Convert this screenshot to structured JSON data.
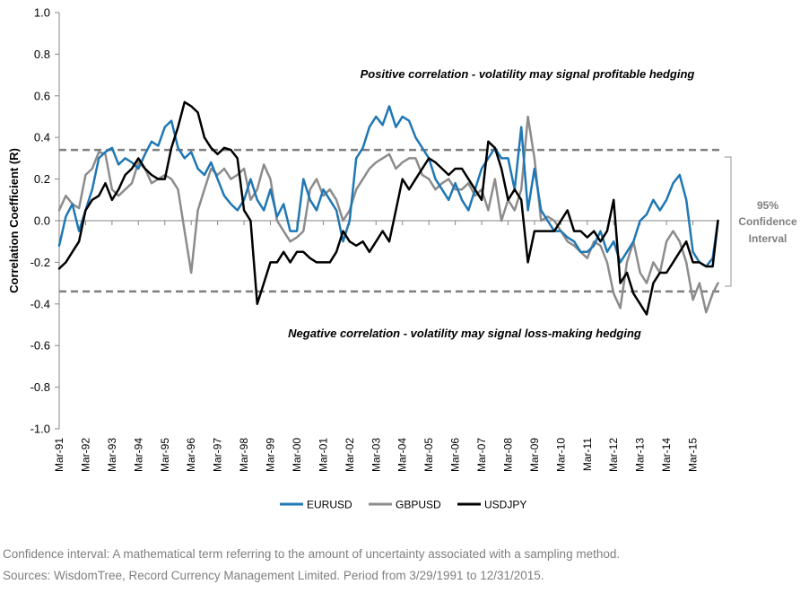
{
  "chart_data": {
    "type": "line",
    "xlabel": "",
    "ylabel": "Correlation Coefficient (R)",
    "ylim": [
      -1.0,
      1.0
    ],
    "yticks": [
      "1.0",
      "0.8",
      "0.6",
      "0.4",
      "0.2",
      "0.0",
      "-0.2",
      "-0.4",
      "-0.6",
      "-0.8",
      "-1.0"
    ],
    "ytick_values": [
      1.0,
      0.8,
      0.6,
      0.4,
      0.2,
      0.0,
      -0.2,
      -0.4,
      -0.6,
      -0.8,
      -1.0
    ],
    "xlim": [
      1991.0,
      2016.0
    ],
    "xticks": [
      "Mar-91",
      "Mar-92",
      "Mar-93",
      "Mar-94",
      "Mar-95",
      "Mar-96",
      "Mar-97",
      "Mar-98",
      "Mar-99",
      "Mar-00",
      "Mar-01",
      "Mar-02",
      "Mar-03",
      "Mar-04",
      "Mar-05",
      "Mar-06",
      "Mar-07",
      "Mar-08",
      "Mar-09",
      "Mar-10",
      "Mar-11",
      "Mar-12",
      "Mar-13",
      "Mar-14",
      "Mar-15"
    ],
    "bands": {
      "upper": 0.34,
      "lower": -0.34
    },
    "annotations": {
      "positive": "Positive correlation - volatility may signal profitable hedging",
      "negative": "Negative correlation - volatility may signal loss-making hedging",
      "ci_pct": "95%",
      "ci_line1": "Confidence",
      "ci_line2": "Interval"
    },
    "series": [
      {
        "name": "EURUSD",
        "color": "#1f77b4",
        "x": [
          1991.0,
          1991.25,
          1991.5,
          1991.75,
          1992.0,
          1992.25,
          1992.5,
          1992.75,
          1993.0,
          1993.25,
          1993.5,
          1993.75,
          1994.0,
          1994.25,
          1994.5,
          1994.75,
          1995.0,
          1995.25,
          1995.5,
          1995.75,
          1996.0,
          1996.25,
          1996.5,
          1996.75,
          1997.0,
          1997.25,
          1997.5,
          1997.75,
          1998.0,
          1998.25,
          1998.5,
          1998.75,
          1999.0,
          1999.25,
          1999.5,
          1999.75,
          2000.0,
          2000.25,
          2000.5,
          2000.75,
          2001.0,
          2001.25,
          2001.5,
          2001.75,
          2002.0,
          2002.25,
          2002.5,
          2002.75,
          2003.0,
          2003.25,
          2003.5,
          2003.75,
          2004.0,
          2004.25,
          2004.5,
          2004.75,
          2005.0,
          2005.25,
          2005.5,
          2005.75,
          2006.0,
          2006.25,
          2006.5,
          2006.75,
          2007.0,
          2007.25,
          2007.5,
          2007.75,
          2008.0,
          2008.25,
          2008.5,
          2008.75,
          2009.0,
          2009.25,
          2009.5,
          2009.75,
          2010.0,
          2010.25,
          2010.5,
          2010.75,
          2011.0,
          2011.25,
          2011.5,
          2011.75,
          2012.0,
          2012.25,
          2012.5,
          2012.75,
          2013.0,
          2013.25,
          2013.5,
          2013.75,
          2014.0,
          2014.25,
          2014.5,
          2014.75,
          2015.0,
          2015.25,
          2015.5,
          2015.75,
          2015.95
        ],
        "values": [
          -0.12,
          0.02,
          0.08,
          -0.05,
          0.05,
          0.15,
          0.3,
          0.33,
          0.35,
          0.27,
          0.3,
          0.28,
          0.25,
          0.32,
          0.38,
          0.36,
          0.45,
          0.48,
          0.35,
          0.3,
          0.33,
          0.25,
          0.22,
          0.28,
          0.2,
          0.12,
          0.08,
          0.05,
          0.1,
          0.2,
          0.1,
          0.05,
          0.15,
          0.02,
          0.08,
          -0.05,
          -0.05,
          0.2,
          0.1,
          0.05,
          0.15,
          0.1,
          0.05,
          -0.1,
          0.0,
          0.3,
          0.35,
          0.45,
          0.5,
          0.46,
          0.55,
          0.45,
          0.5,
          0.48,
          0.4,
          0.35,
          0.3,
          0.2,
          0.15,
          0.1,
          0.18,
          0.1,
          0.05,
          0.15,
          0.25,
          0.3,
          0.35,
          0.3,
          0.3,
          0.15,
          0.45,
          0.05,
          0.25,
          0.05,
          0.0,
          -0.05,
          -0.05,
          -0.08,
          -0.1,
          -0.15,
          -0.15,
          -0.12,
          -0.05,
          -0.15,
          -0.1,
          -0.2,
          -0.15,
          -0.1,
          0.0,
          0.03,
          0.1,
          0.05,
          0.1,
          0.18,
          0.22,
          0.1,
          -0.15,
          -0.2,
          -0.22,
          -0.18,
          0.0
        ]
      },
      {
        "name": "GBPUSD",
        "color": "#8c8c8c",
        "x": [
          1991.0,
          1991.25,
          1991.5,
          1991.75,
          1992.0,
          1992.25,
          1992.5,
          1992.75,
          1993.0,
          1993.25,
          1993.5,
          1993.75,
          1994.0,
          1994.25,
          1994.5,
          1994.75,
          1995.0,
          1995.25,
          1995.5,
          1995.75,
          1996.0,
          1996.25,
          1996.5,
          1996.75,
          1997.0,
          1997.25,
          1997.5,
          1997.75,
          1998.0,
          1998.25,
          1998.5,
          1998.75,
          1999.0,
          1999.25,
          1999.5,
          1999.75,
          2000.0,
          2000.25,
          2000.5,
          2000.75,
          2001.0,
          2001.25,
          2001.5,
          2001.75,
          2002.0,
          2002.25,
          2002.5,
          2002.75,
          2003.0,
          2003.25,
          2003.5,
          2003.75,
          2004.0,
          2004.25,
          2004.5,
          2004.75,
          2005.0,
          2005.25,
          2005.5,
          2005.75,
          2006.0,
          2006.25,
          2006.5,
          2006.75,
          2007.0,
          2007.25,
          2007.5,
          2007.75,
          2008.0,
          2008.25,
          2008.5,
          2008.75,
          2009.0,
          2009.25,
          2009.5,
          2009.75,
          2010.0,
          2010.25,
          2010.5,
          2010.75,
          2011.0,
          2011.25,
          2011.5,
          2011.75,
          2012.0,
          2012.25,
          2012.5,
          2012.75,
          2013.0,
          2013.25,
          2013.5,
          2013.75,
          2014.0,
          2014.25,
          2014.5,
          2014.75,
          2015.0,
          2015.25,
          2015.5,
          2015.75,
          2015.95
        ],
        "values": [
          0.05,
          0.12,
          0.08,
          0.06,
          0.22,
          0.25,
          0.33,
          0.32,
          0.15,
          0.12,
          0.15,
          0.18,
          0.28,
          0.25,
          0.18,
          0.2,
          0.22,
          0.2,
          0.15,
          -0.05,
          -0.25,
          0.05,
          0.15,
          0.25,
          0.22,
          0.25,
          0.2,
          0.22,
          0.25,
          0.1,
          0.15,
          0.27,
          0.2,
          0.0,
          -0.05,
          -0.1,
          -0.08,
          -0.05,
          0.15,
          0.2,
          0.12,
          0.15,
          0.1,
          0.0,
          0.05,
          0.15,
          0.2,
          0.25,
          0.28,
          0.3,
          0.32,
          0.25,
          0.28,
          0.3,
          0.3,
          0.22,
          0.2,
          0.15,
          0.18,
          0.2,
          0.15,
          0.15,
          0.18,
          0.12,
          0.15,
          0.05,
          0.2,
          0.0,
          0.1,
          0.05,
          0.15,
          0.5,
          0.3,
          0.0,
          0.02,
          0.0,
          -0.05,
          -0.1,
          -0.12,
          -0.15,
          -0.18,
          -0.1,
          -0.12,
          -0.2,
          -0.35,
          -0.42,
          -0.2,
          -0.1,
          -0.25,
          -0.3,
          -0.2,
          -0.25,
          -0.1,
          -0.05,
          -0.1,
          -0.2,
          -0.38,
          -0.3,
          -0.44,
          -0.35,
          -0.3
        ]
      },
      {
        "name": "USDJPY",
        "color": "#000000",
        "x": [
          1991.0,
          1991.25,
          1991.5,
          1991.75,
          1992.0,
          1992.25,
          1992.5,
          1992.75,
          1993.0,
          1993.25,
          1993.5,
          1993.75,
          1994.0,
          1994.25,
          1994.5,
          1994.75,
          1995.0,
          1995.25,
          1995.5,
          1995.75,
          1996.0,
          1996.25,
          1996.5,
          1996.75,
          1997.0,
          1997.25,
          1997.5,
          1997.75,
          1998.0,
          1998.25,
          1998.5,
          1998.75,
          1999.0,
          1999.25,
          1999.5,
          1999.75,
          2000.0,
          2000.25,
          2000.5,
          2000.75,
          2001.0,
          2001.25,
          2001.5,
          2001.75,
          2002.0,
          2002.25,
          2002.5,
          2002.75,
          2003.0,
          2003.25,
          2003.5,
          2003.75,
          2004.0,
          2004.25,
          2004.5,
          2004.75,
          2005.0,
          2005.25,
          2005.5,
          2005.75,
          2006.0,
          2006.25,
          2006.5,
          2006.75,
          2007.0,
          2007.25,
          2007.5,
          2007.75,
          2008.0,
          2008.25,
          2008.5,
          2008.75,
          2009.0,
          2009.25,
          2009.5,
          2009.75,
          2010.0,
          2010.25,
          2010.5,
          2010.75,
          2011.0,
          2011.25,
          2011.5,
          2011.75,
          2012.0,
          2012.25,
          2012.5,
          2012.75,
          2013.0,
          2013.25,
          2013.5,
          2013.75,
          2014.0,
          2014.25,
          2014.5,
          2014.75,
          2015.0,
          2015.25,
          2015.5,
          2015.75,
          2015.95
        ],
        "values": [
          -0.23,
          -0.2,
          -0.15,
          -0.1,
          0.05,
          0.1,
          0.12,
          0.18,
          0.1,
          0.15,
          0.22,
          0.25,
          0.3,
          0.25,
          0.22,
          0.2,
          0.2,
          0.35,
          0.45,
          0.57,
          0.55,
          0.52,
          0.4,
          0.35,
          0.32,
          0.35,
          0.34,
          0.3,
          0.05,
          0.0,
          -0.4,
          -0.3,
          -0.2,
          -0.2,
          -0.15,
          -0.2,
          -0.15,
          -0.15,
          -0.18,
          -0.2,
          -0.2,
          -0.2,
          -0.15,
          -0.05,
          -0.1,
          -0.12,
          -0.1,
          -0.15,
          -0.1,
          -0.05,
          -0.1,
          0.05,
          0.2,
          0.15,
          0.2,
          0.25,
          0.3,
          0.28,
          0.25,
          0.22,
          0.25,
          0.25,
          0.2,
          0.15,
          0.1,
          0.38,
          0.35,
          0.25,
          0.1,
          0.15,
          0.1,
          -0.2,
          -0.05,
          -0.05,
          -0.05,
          -0.05,
          0.0,
          0.05,
          -0.05,
          -0.05,
          -0.08,
          -0.05,
          -0.1,
          -0.05,
          0.1,
          -0.3,
          -0.25,
          -0.35,
          -0.4,
          -0.45,
          -0.3,
          -0.25,
          -0.25,
          -0.2,
          -0.15,
          -0.1,
          -0.2,
          -0.2,
          -0.22,
          -0.22,
          0.0
        ]
      }
    ]
  },
  "footer": {
    "line1": "Confidence interval: A mathematical term referring to the amount of uncertainty associated with a sampling method.",
    "line2": "Sources: WisdomTree, Record Currency Management Limited. Period from 3/29/1991 to 12/31/2015."
  }
}
